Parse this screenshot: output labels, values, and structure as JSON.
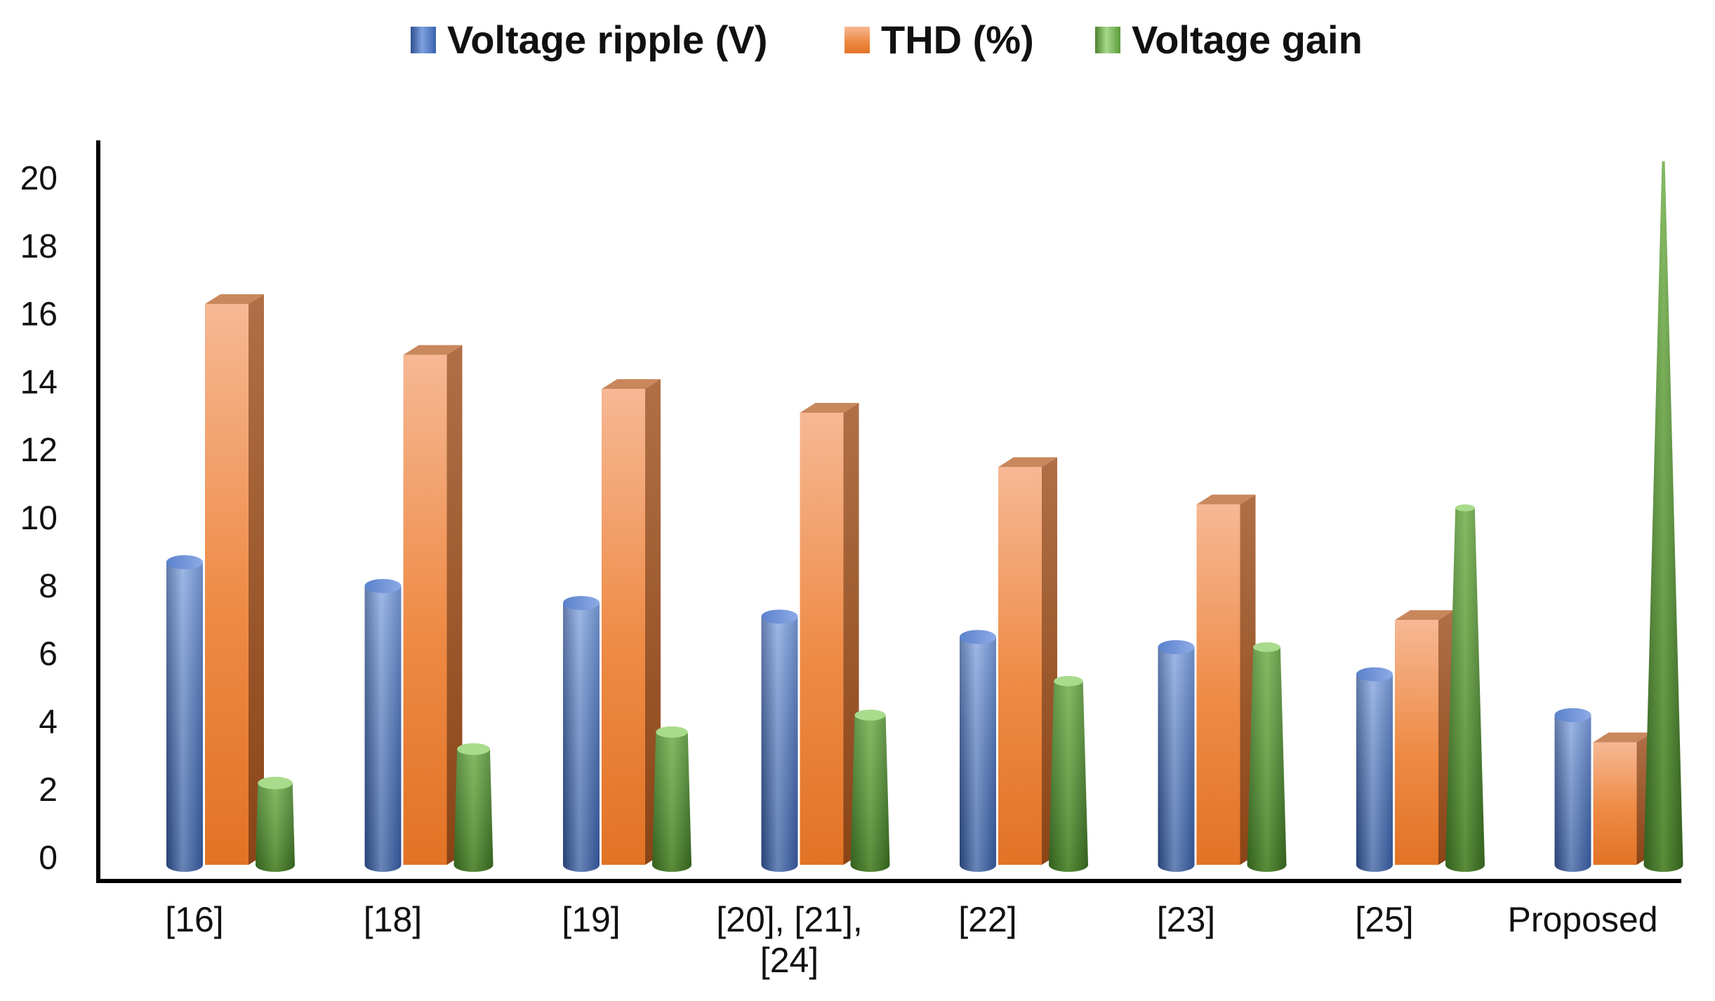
{
  "chart_data": {
    "type": "bar",
    "title": "",
    "xlabel": "",
    "ylabel": "",
    "ylim": [
      0,
      20
    ],
    "yticks": [
      0,
      2,
      4,
      6,
      8,
      10,
      12,
      14,
      16,
      18,
      20
    ],
    "categories": [
      {
        "lines": [
          "[16]"
        ]
      },
      {
        "lines": [
          "[18]"
        ]
      },
      {
        "lines": [
          "[19]"
        ]
      },
      {
        "lines": [
          "[20], [21],",
          "[24]"
        ]
      },
      {
        "lines": [
          "[22]"
        ]
      },
      {
        "lines": [
          "[23]"
        ]
      },
      {
        "lines": [
          "[25]"
        ]
      },
      {
        "lines": [
          "Proposed"
        ]
      }
    ],
    "series": [
      {
        "name": "Voltage ripple (V)",
        "color": "#4472C4",
        "shape": "cylinder",
        "values": [
          8.7,
          8.0,
          7.5,
          7.1,
          6.5,
          6.2,
          5.4,
          4.2
        ]
      },
      {
        "name": "THD (%)",
        "color": "#ED7D31",
        "shape": "box",
        "values": [
          16.3,
          14.8,
          13.8,
          13.1,
          11.5,
          10.4,
          7.0,
          3.4
        ]
      },
      {
        "name": "Voltage gain",
        "color": "#70AD47",
        "shape": "cone",
        "values": [
          2.2,
          3.2,
          3.7,
          4.2,
          5.2,
          6.2,
          10.3,
          20.5
        ]
      }
    ],
    "legend_position": "top-center",
    "grid": false
  }
}
